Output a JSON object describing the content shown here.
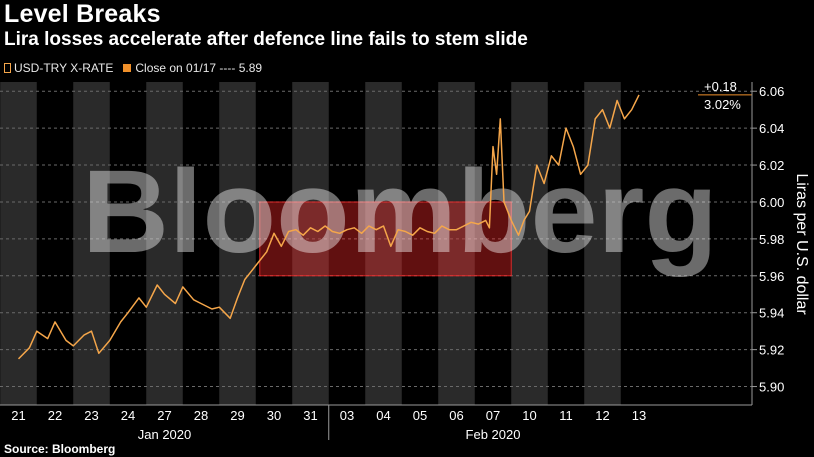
{
  "title": "Level Breaks",
  "subtitle": "Lira losses accelerate after defence line fails to stem slide",
  "legend": {
    "series_label": "USD-TRY X-RATE",
    "close_label": "Close on 01/17 ---- 5.89"
  },
  "source": "Source: Bloomberg",
  "watermark": "Bloomberg",
  "colors": {
    "series": "#f5a64a",
    "annotation": "#f0902a",
    "highlight_fill": "#ff2a2a",
    "band": "#2a2a2a"
  },
  "chart_data": {
    "type": "line",
    "title": "Level Breaks",
    "ylabel": "Liras per U.S. dollar",
    "ylim": [
      5.89,
      6.065
    ],
    "y_ticks": [
      "5.90",
      "5.92",
      "5.94",
      "5.96",
      "5.98",
      "6.00",
      "6.02",
      "6.04",
      "6.06"
    ],
    "categories": [
      "21",
      "22",
      "23",
      "24",
      "27",
      "28",
      "29",
      "30",
      "31",
      "03",
      "04",
      "05",
      "06",
      "07",
      "10",
      "11",
      "12",
      "13"
    ],
    "months": [
      {
        "label": "Jan 2020",
        "first_day": 0,
        "last_day": 8
      },
      {
        "label": "Feb 2020",
        "first_day": 9,
        "last_day": 17
      }
    ],
    "series": [
      {
        "name": "USD-TRY X-RATE",
        "x": [
          0,
          0.3,
          0.5,
          0.8,
          1.0,
          1.3,
          1.5,
          1.8,
          2.0,
          2.2,
          2.5,
          2.8,
          3.0,
          3.3,
          3.5,
          3.8,
          4.0,
          4.3,
          4.5,
          4.8,
          5.0,
          5.3,
          5.5,
          5.8,
          6.0,
          6.2,
          6.4,
          6.6,
          6.8,
          7.0,
          7.2,
          7.4,
          7.6,
          7.8,
          8.0,
          8.2,
          8.4,
          8.6,
          8.8,
          9.0,
          9.2,
          9.4,
          9.6,
          9.8,
          10.0,
          10.2,
          10.4,
          10.6,
          10.8,
          11.0,
          11.2,
          11.4,
          11.6,
          11.8,
          12.0,
          12.2,
          12.4,
          12.6,
          12.8,
          12.9,
          13.0,
          13.1,
          13.2,
          13.3,
          13.5,
          13.7,
          13.85,
          14.0,
          14.2,
          14.4,
          14.6,
          14.8,
          15.0,
          15.2,
          15.4,
          15.6,
          15.8,
          16.0,
          16.2,
          16.4,
          16.6,
          16.8,
          17.0
        ],
        "values": [
          5.915,
          5.921,
          5.93,
          5.926,
          5.935,
          5.925,
          5.922,
          5.928,
          5.93,
          5.918,
          5.925,
          5.935,
          5.94,
          5.948,
          5.943,
          5.955,
          5.95,
          5.945,
          5.954,
          5.947,
          5.945,
          5.942,
          5.943,
          5.937,
          5.948,
          5.958,
          5.963,
          5.968,
          5.973,
          5.983,
          5.976,
          5.984,
          5.985,
          5.982,
          5.986,
          5.984,
          5.987,
          5.984,
          5.983,
          5.985,
          5.986,
          5.983,
          5.987,
          5.985,
          5.987,
          5.976,
          5.985,
          5.984,
          5.982,
          5.986,
          5.984,
          5.983,
          5.987,
          5.985,
          5.985,
          5.987,
          5.989,
          5.988,
          5.99,
          5.986,
          6.03,
          6.015,
          6.045,
          6.0,
          5.99,
          5.982,
          5.99,
          5.995,
          6.02,
          6.01,
          6.025,
          6.02,
          6.04,
          6.03,
          6.015,
          6.02,
          6.045,
          6.05,
          6.04,
          6.055,
          6.045,
          6.05,
          6.058
        ]
      }
    ],
    "close_reference": {
      "date": "01/17",
      "value": 5.89
    },
    "highlight_range": {
      "x_start": 7,
      "x_end": 14,
      "y_min": 5.96,
      "y_max": 6.0
    },
    "annotation": {
      "change": "+0.18",
      "pct": "3.02%"
    }
  }
}
